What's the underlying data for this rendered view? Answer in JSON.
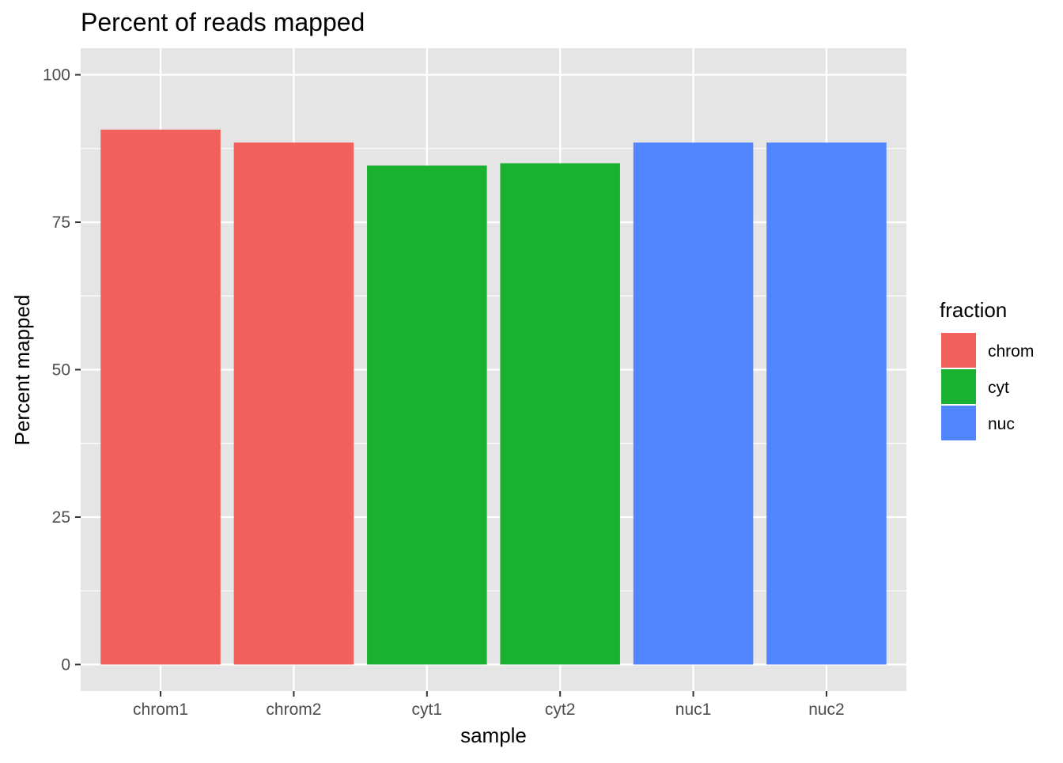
{
  "chart_data": {
    "type": "bar",
    "title": "Percent of reads mapped",
    "xlabel": "sample",
    "ylabel": "Percent mapped",
    "categories": [
      "chrom1",
      "chrom2",
      "cyt1",
      "cyt2",
      "nuc1",
      "nuc2"
    ],
    "values": [
      90.7,
      88.5,
      84.6,
      85.0,
      88.5,
      88.5
    ],
    "fill_group": [
      "chrom",
      "chrom",
      "cyt",
      "cyt",
      "nuc",
      "nuc"
    ],
    "ylim": [
      -4.5,
      104.5
    ],
    "yticks": [
      0,
      25,
      50,
      75,
      100
    ],
    "grid": true,
    "panel_background": "#e5e5e5",
    "legend": {
      "title": "fraction",
      "position": "right",
      "entries": [
        {
          "label": "chrom",
          "color": "#f2605b"
        },
        {
          "label": "cyt",
          "color": "#1bb130"
        },
        {
          "label": "nuc",
          "color": "#5085ff"
        }
      ]
    }
  }
}
